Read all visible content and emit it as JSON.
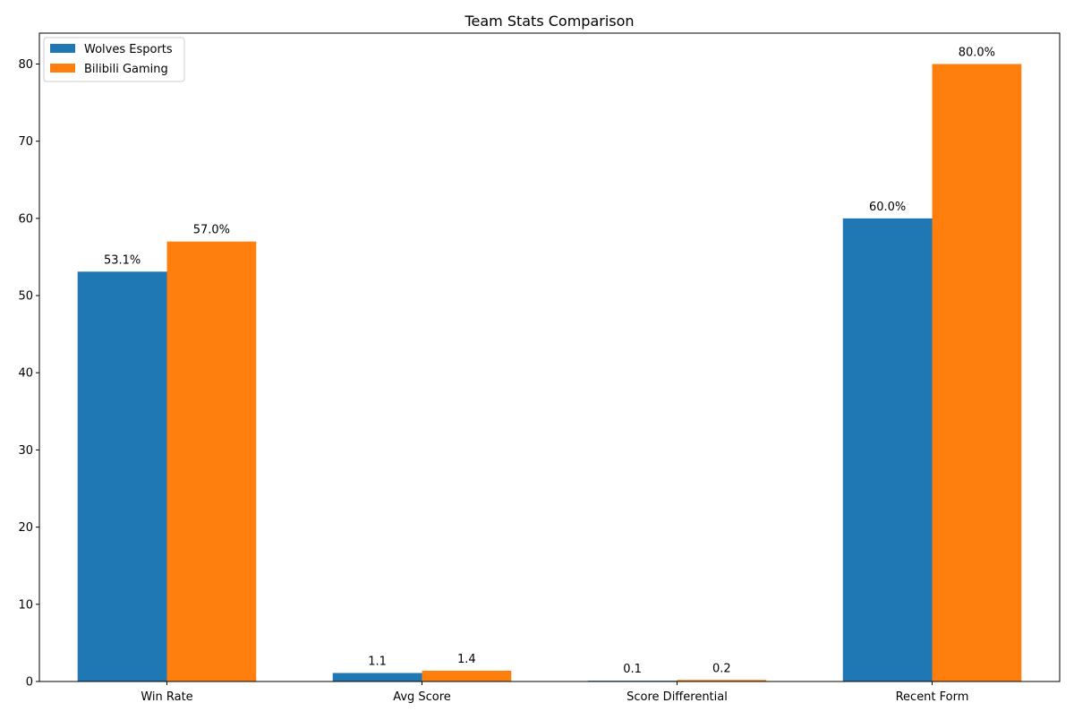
{
  "chart_data": {
    "type": "bar",
    "title": "Team Stats Comparison",
    "xlabel": "",
    "ylabel": "",
    "categories": [
      "Win Rate",
      "Avg Score",
      "Score Differential",
      "Recent Form"
    ],
    "series": [
      {
        "name": "Wolves Esports",
        "color": "#1f77b4",
        "values": [
          53.1,
          1.1,
          0.1,
          60.0
        ],
        "labels": [
          "53.1%",
          "1.1",
          "0.1",
          "60.0%"
        ]
      },
      {
        "name": "Bilibili Gaming",
        "color": "#ff7f0e",
        "values": [
          57.0,
          1.4,
          0.2,
          80.0
        ],
        "labels": [
          "57.0%",
          "1.4",
          "0.2",
          "80.0%"
        ]
      }
    ],
    "ylim": [
      0,
      84
    ],
    "yticks": [
      0,
      10,
      20,
      30,
      40,
      50,
      60,
      70,
      80
    ],
    "grid": false,
    "legend_position": "top-left"
  }
}
